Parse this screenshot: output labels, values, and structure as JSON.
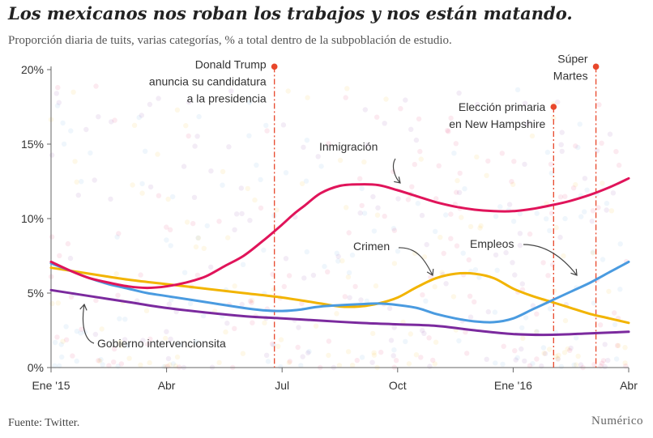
{
  "title": "Los mexicanos nos roban los trabajos y nos están matando.",
  "subtitle": "Proporción diaria de tuits, varias categorías, % a total dentro de la subpoblación de estudio.",
  "source": "Fuente: Twitter.",
  "brand": "Numérico",
  "chart_data": {
    "type": "line",
    "title": "Los mexicanos nos roban los trabajos y nos están matando.",
    "subtitle": "Proporción diaria de tuits, varias categorías, % a total dentro de la subpoblación de estudio.",
    "xlim": [
      0,
      15
    ],
    "ylim": [
      0,
      20
    ],
    "x_ticks": [
      {
        "x": 0,
        "label": "Ene '15"
      },
      {
        "x": 3,
        "label": "Abr"
      },
      {
        "x": 6,
        "label": "Jul"
      },
      {
        "x": 9,
        "label": "Oct"
      },
      {
        "x": 12,
        "label": "Ene '16"
      },
      {
        "x": 15,
        "label": "Abr"
      }
    ],
    "y_ticks": [
      {
        "y": 0,
        "label": "0%"
      },
      {
        "y": 5,
        "label": "5%"
      },
      {
        "y": 10,
        "label": "10%"
      },
      {
        "y": 15,
        "label": "15%"
      },
      {
        "y": 20,
        "label": "20%"
      }
    ],
    "series": [
      {
        "name": "Inmigración",
        "color": "#e0145a",
        "x": [
          0,
          0.5,
          1,
          1.5,
          2,
          2.5,
          3,
          3.5,
          4,
          4.5,
          5,
          5.5,
          6,
          6.3,
          6.6,
          7,
          7.5,
          8,
          8.5,
          9,
          9.5,
          10,
          10.5,
          11,
          11.5,
          12,
          12.5,
          13,
          13.5,
          14,
          14.5,
          15
        ],
        "y": [
          7.1,
          6.5,
          6.0,
          5.7,
          5.45,
          5.35,
          5.45,
          5.7,
          6.1,
          6.8,
          7.5,
          8.5,
          9.6,
          10.3,
          10.9,
          11.7,
          12.2,
          12.3,
          12.25,
          11.9,
          11.5,
          11.1,
          10.8,
          10.6,
          10.5,
          10.5,
          10.65,
          10.9,
          11.2,
          11.6,
          12.1,
          12.7
        ]
      },
      {
        "name": "Crimen",
        "color": "#f2b400",
        "x": [
          0,
          1,
          2,
          3,
          4,
          5,
          6,
          7,
          7.5,
          8,
          8.5,
          9,
          9.5,
          10,
          10.5,
          11,
          11.5,
          12,
          12.5,
          13,
          13.5,
          14,
          14.5,
          15
        ],
        "y": [
          6.7,
          6.3,
          5.9,
          5.6,
          5.3,
          5.0,
          4.7,
          4.3,
          4.1,
          4.1,
          4.3,
          4.7,
          5.4,
          6.0,
          6.3,
          6.3,
          6.0,
          5.3,
          4.8,
          4.4,
          4.0,
          3.6,
          3.3,
          3.0
        ]
      },
      {
        "name": "Empleos",
        "color": "#4a9be0",
        "x": [
          0,
          0.5,
          1,
          1.5,
          2,
          2.5,
          3,
          4,
          5,
          5.5,
          6,
          6.5,
          7,
          8,
          8.5,
          9,
          9.5,
          10,
          10.5,
          11,
          11.5,
          12,
          12.5,
          13,
          13.5,
          14,
          14.5,
          15
        ],
        "y": [
          7.0,
          6.5,
          6.0,
          5.6,
          5.3,
          5.0,
          4.8,
          4.4,
          4.0,
          3.85,
          3.8,
          3.9,
          4.1,
          4.25,
          4.3,
          4.2,
          4.0,
          3.6,
          3.3,
          3.1,
          3.05,
          3.3,
          3.9,
          4.5,
          5.1,
          5.7,
          6.4,
          7.1
        ]
      },
      {
        "name": "Gobierno intervencionsita",
        "color": "#7b2a9e",
        "x": [
          0,
          1,
          2,
          3,
          4,
          5,
          6,
          7,
          8,
          9,
          10,
          11,
          12,
          13,
          14,
          15
        ],
        "y": [
          5.2,
          4.8,
          4.4,
          4.0,
          3.7,
          3.45,
          3.3,
          3.15,
          3.0,
          2.9,
          2.8,
          2.5,
          2.25,
          2.2,
          2.3,
          2.4
        ]
      }
    ],
    "events": [
      {
        "x": 5.8,
        "label": [
          "Donald Trump",
          "anuncia su candidatura",
          "a la presidencia"
        ],
        "dot_y": 20.2
      },
      {
        "x": 13.05,
        "label": [
          "Elección primaria",
          "en New Hampshire"
        ],
        "dot_y": 17.5
      },
      {
        "x": 14.15,
        "label": [
          "Súper",
          "Martes"
        ],
        "dot_y": 20.2
      }
    ],
    "grid": false,
    "legend": "none"
  }
}
